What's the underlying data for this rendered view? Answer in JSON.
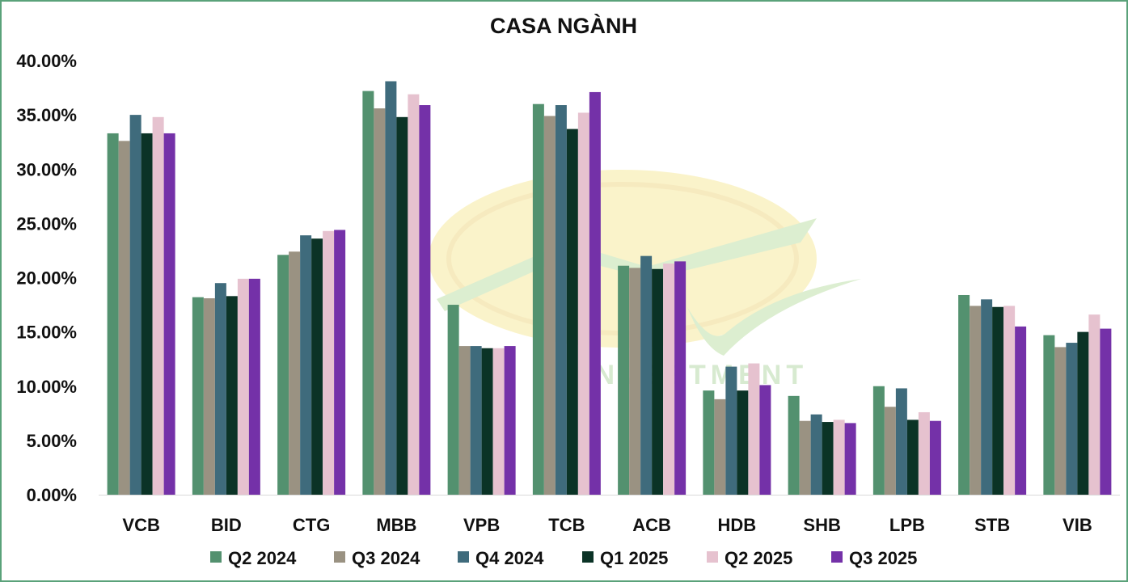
{
  "chart_data": {
    "type": "bar",
    "title": "CASA NGÀNH",
    "xlabel": "",
    "ylabel": "",
    "ylim": [
      0,
      0.4
    ],
    "yticks": [
      "0.00%",
      "5.00%",
      "10.00%",
      "15.00%",
      "20.00%",
      "25.00%",
      "30.00%",
      "35.00%",
      "40.00%"
    ],
    "grid": false,
    "legend_position": "bottom",
    "categories": [
      "VCB",
      "BID",
      "CTG",
      "MBB",
      "VPB",
      "TCB",
      "ACB",
      "HDB",
      "SHB",
      "LPB",
      "STB",
      "VIB"
    ],
    "series": [
      {
        "name": "Q2 2024",
        "color": "#53916f",
        "values": [
          0.333,
          0.182,
          0.221,
          0.372,
          0.175,
          0.36,
          0.211,
          0.096,
          0.091,
          0.1,
          0.184,
          0.147
        ]
      },
      {
        "name": "Q3 2024",
        "color": "#9a9282",
        "values": [
          0.326,
          0.181,
          0.224,
          0.356,
          0.137,
          0.349,
          0.209,
          0.088,
          0.068,
          0.081,
          0.174,
          0.136
        ]
      },
      {
        "name": "Q4 2024",
        "color": "#3f6b7c",
        "values": [
          0.35,
          0.195,
          0.239,
          0.381,
          0.137,
          0.359,
          0.22,
          0.118,
          0.074,
          0.098,
          0.18,
          0.14
        ]
      },
      {
        "name": "Q1 2025",
        "color": "#0b3326",
        "values": [
          0.333,
          0.183,
          0.236,
          0.348,
          0.135,
          0.337,
          0.208,
          0.096,
          0.067,
          0.069,
          0.173,
          0.15
        ]
      },
      {
        "name": "Q2 2025",
        "color": "#e6c2cf",
        "values": [
          0.348,
          0.199,
          0.243,
          0.369,
          0.135,
          0.352,
          0.213,
          0.121,
          0.069,
          0.076,
          0.174,
          0.166
        ]
      },
      {
        "name": "Q3 2025",
        "color": "#7431a8",
        "values": [
          0.333,
          0.199,
          0.244,
          0.359,
          0.137,
          0.371,
          0.215,
          0.101,
          0.066,
          0.068,
          0.155,
          0.153
        ]
      }
    ],
    "watermark_text": "INVESTMENT"
  }
}
